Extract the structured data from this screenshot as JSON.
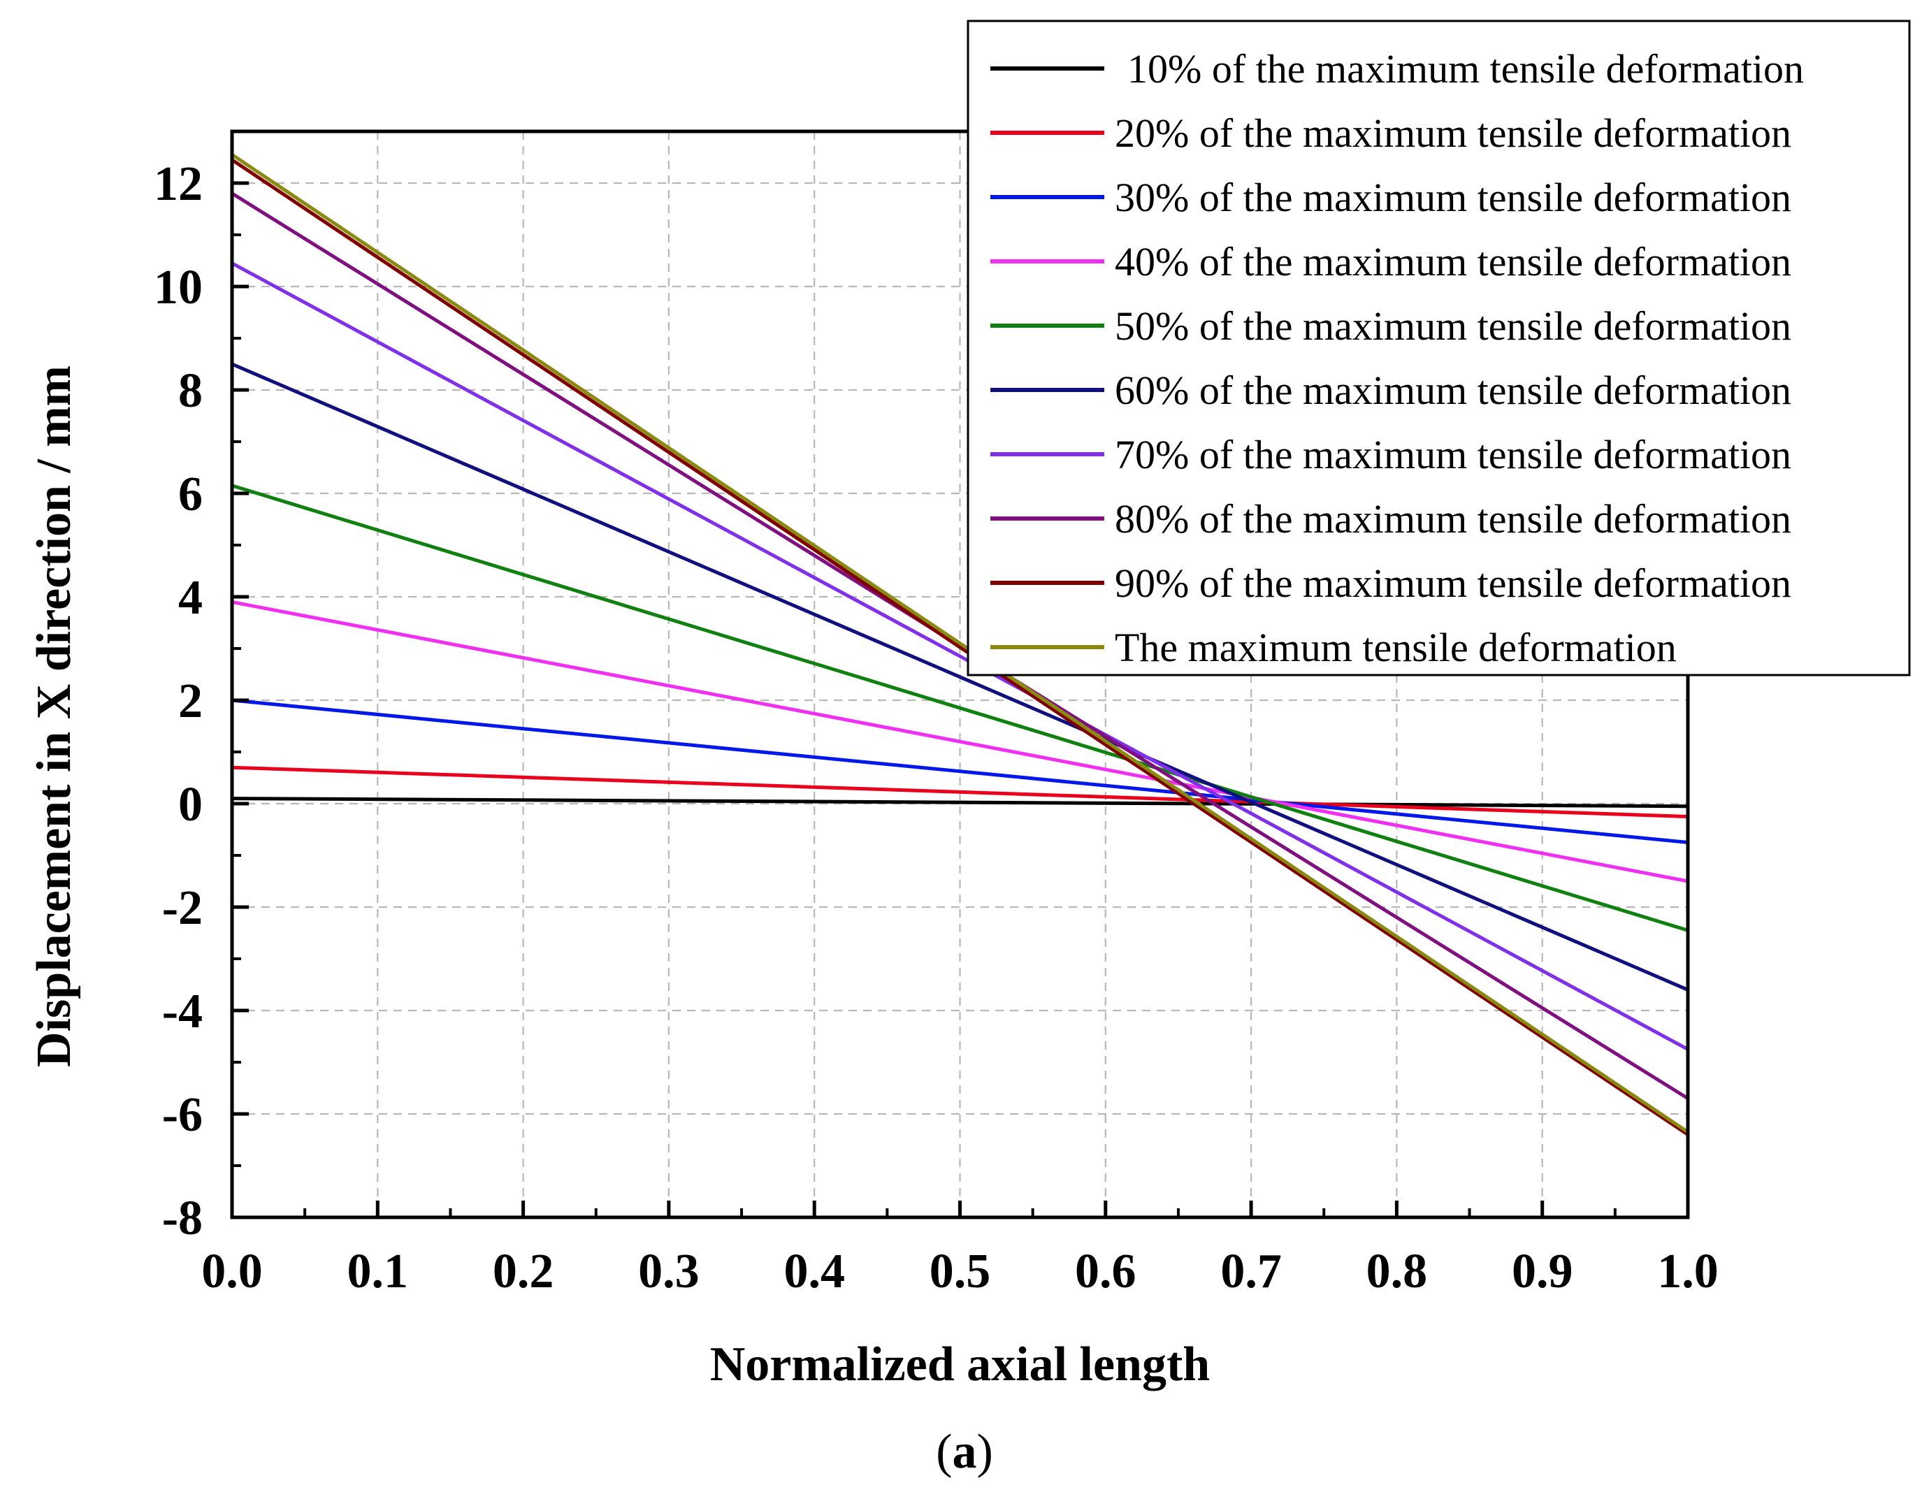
{
  "chart_data": {
    "type": "line",
    "xlabel": "Normalized axial length",
    "ylabel": "Displacement in X direction / mm",
    "xlim": [
      0.0,
      1.0
    ],
    "ylim": [
      -8,
      13
    ],
    "xticks": [
      "0.0",
      "0.1",
      "0.2",
      "0.3",
      "0.4",
      "0.5",
      "0.6",
      "0.7",
      "0.8",
      "0.9",
      "1.0"
    ],
    "yticks": [
      "-8",
      "-6",
      "-4",
      "-2",
      "0",
      "2",
      "4",
      "6",
      "8",
      "10",
      "12"
    ],
    "grid": true,
    "legend_position": "top-right",
    "caption": {
      "open": "(",
      "letter": "a",
      "close": ")"
    },
    "x": [
      0.0,
      1.0
    ],
    "series": [
      {
        "name": "10% of the maximum tensile deformation",
        "color": "#000000",
        "values": [
          0.1,
          -0.05
        ]
      },
      {
        "name": "20% of the maximum tensile deformation",
        "color": "#e8001c",
        "values": [
          0.7,
          -0.25
        ]
      },
      {
        "name": "30% of the maximum tensile deformation",
        "color": "#0018e8",
        "values": [
          2.0,
          -0.75
        ]
      },
      {
        "name": "40% of the maximum tensile deformation",
        "color": "#f030f0",
        "values": [
          3.9,
          -1.5
        ]
      },
      {
        "name": "50% of the maximum tensile deformation",
        "color": "#108010",
        "values": [
          6.15,
          -2.45
        ]
      },
      {
        "name": "60% of the maximum tensile deformation",
        "color": "#10107f",
        "values": [
          8.5,
          -3.6
        ]
      },
      {
        "name": "70% of the maximum tensile deformation",
        "color": "#8030e8",
        "values": [
          10.45,
          -4.75
        ]
      },
      {
        "name": "80% of the maximum tensile deformation",
        "color": "#801080",
        "values": [
          11.8,
          -5.7
        ]
      },
      {
        "name": "90% of the maximum tensile deformation",
        "color": "#800000",
        "values": [
          12.45,
          -6.4
        ]
      },
      {
        "name": "The maximum tensile deformation",
        "color": "#8a8a10",
        "values": [
          12.55,
          -6.35
        ]
      }
    ]
  }
}
